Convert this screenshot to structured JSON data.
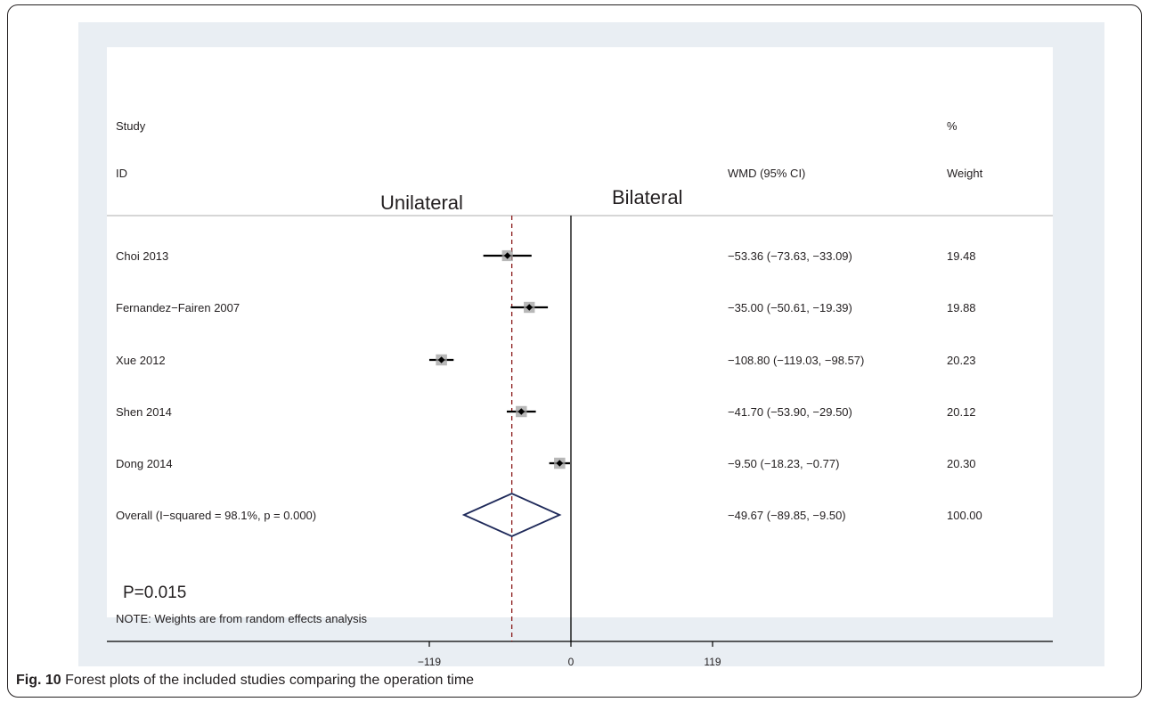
{
  "header": {
    "study_line1": "Study",
    "study_line2": "ID",
    "effect_label": "WMD (95% CI)",
    "weight_line1": "%",
    "weight_line2": "Weight",
    "left_group": "Unilateral",
    "right_group": "Bilateral"
  },
  "annotations": {
    "p_value": "P=0.015",
    "note": "NOTE: Weights are from random effects analysis"
  },
  "caption": {
    "label": "Fig. 10",
    "text": " Forest plots of the included studies comparing the operation time"
  },
  "chart_data": {
    "type": "forest",
    "x_ticks": [
      {
        "value": -119,
        "label": "−119"
      },
      {
        "value": 0,
        "label": "0"
      },
      {
        "value": 119,
        "label": "119"
      }
    ],
    "null_line": 0,
    "studies": [
      {
        "name": "Choi 2013",
        "est": -53.36,
        "lo": -73.63,
        "hi": -33.09,
        "ci_text": "−53.36 (−73.63, −33.09)",
        "weight": 19.48,
        "weight_text": "19.48"
      },
      {
        "name": "Fernandez−Fairen 2007",
        "est": -35.0,
        "lo": -50.61,
        "hi": -19.39,
        "ci_text": "−35.00 (−50.61, −19.39)",
        "weight": 19.88,
        "weight_text": "19.88"
      },
      {
        "name": "Xue 2012",
        "est": -108.8,
        "lo": -119.03,
        "hi": -98.57,
        "ci_text": "−108.80 (−119.03, −98.57)",
        "weight": 20.23,
        "weight_text": "20.23"
      },
      {
        "name": "Shen 2014",
        "est": -41.7,
        "lo": -53.9,
        "hi": -29.5,
        "ci_text": "−41.70 (−53.90, −29.50)",
        "weight": 20.12,
        "weight_text": "20.12"
      },
      {
        "name": "Dong 2014",
        "est": -9.5,
        "lo": -18.23,
        "hi": -0.77,
        "ci_text": "−9.50 (−18.23, −0.77)",
        "weight": 20.3,
        "weight_text": "20.30"
      }
    ],
    "overall": {
      "name": "Overall  (I−squared = 98.1%, p = 0.000)",
      "est": -49.67,
      "lo": -89.85,
      "hi": -9.5,
      "ci_text": "−49.67 (−89.85, −9.50)",
      "weight": 100.0,
      "weight_text": "100.00"
    },
    "colors": {
      "ci_line": "#000000",
      "marker": "#000000",
      "weight_box": "#a0a0a0",
      "diamond": "#1f2a5a",
      "overall_line": "#8b1a1a",
      "text": "#231f20"
    }
  }
}
